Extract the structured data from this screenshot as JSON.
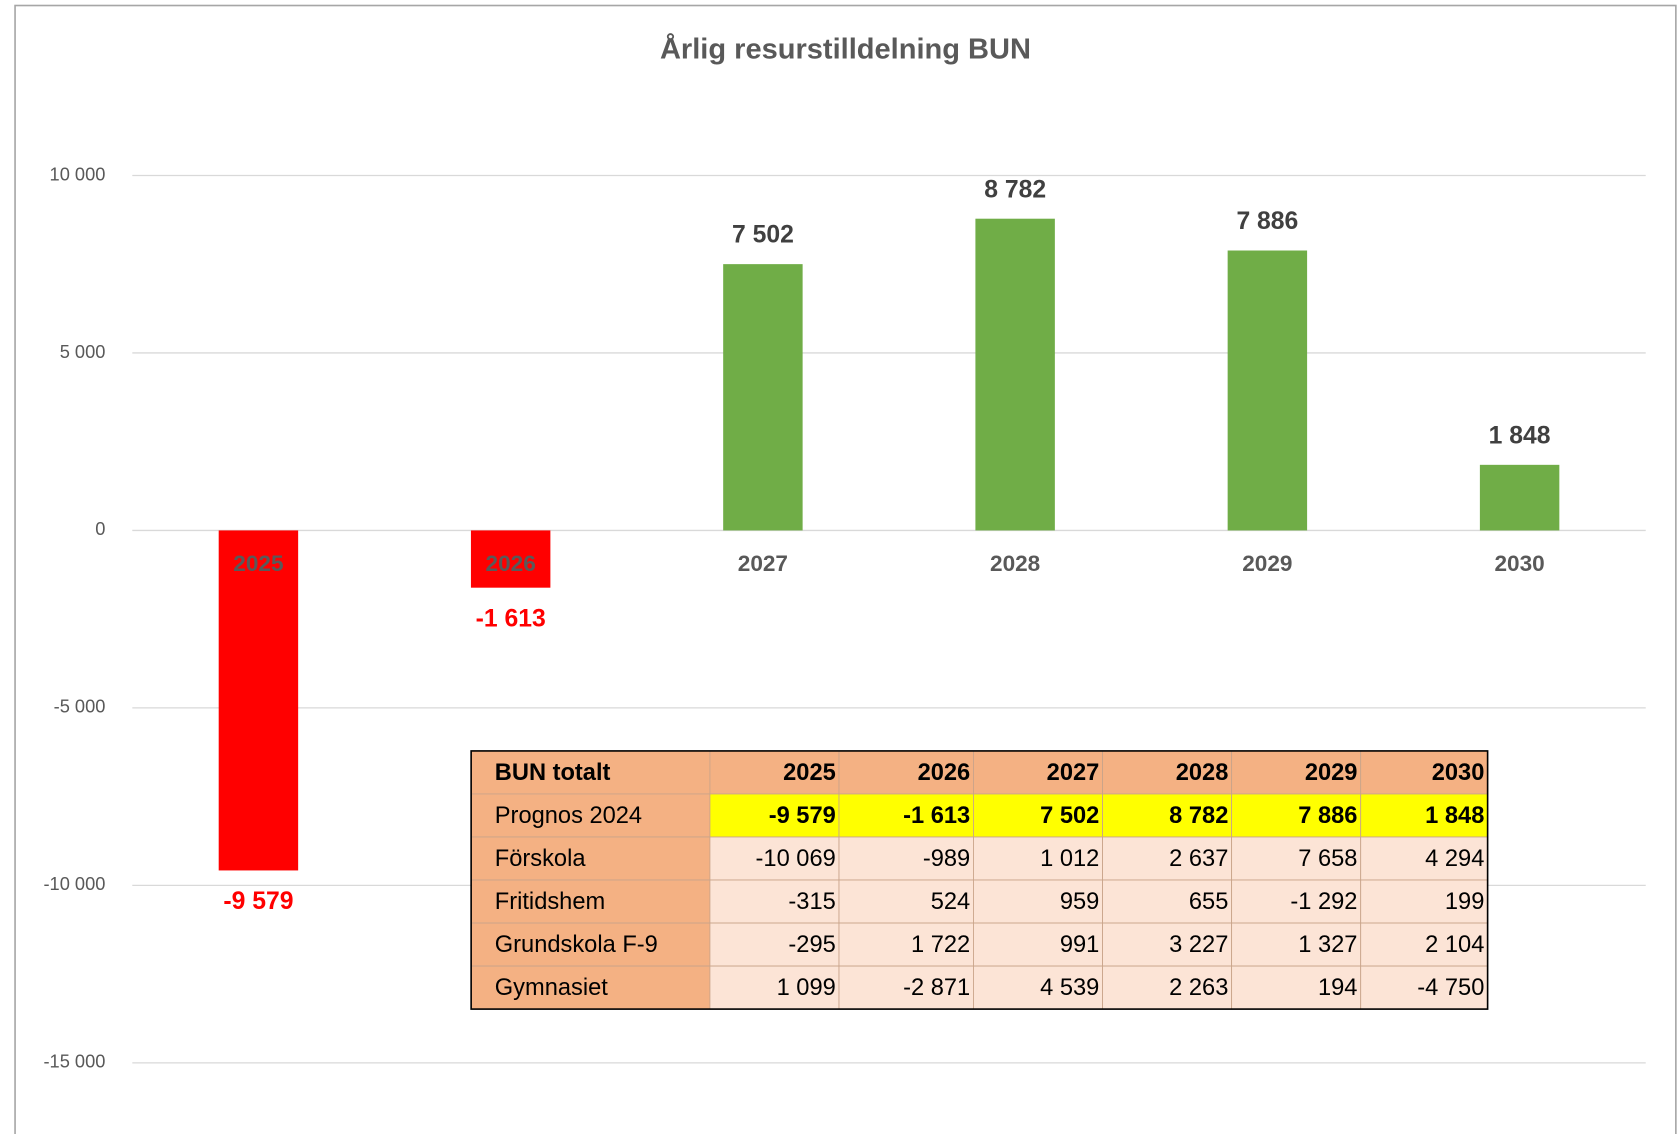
{
  "chart_data": {
    "type": "bar",
    "title": "Årlig resurstilldelning BUN",
    "categories": [
      "2025",
      "2026",
      "2027",
      "2028",
      "2029",
      "2030"
    ],
    "values": [
      -9579,
      -1613,
      7502,
      8782,
      7886,
      1848
    ],
    "value_labels": [
      "-9 579",
      "-1 613",
      "7 502",
      "8 782",
      "7 886",
      "1 848"
    ],
    "colors": [
      "#ff0000",
      "#ff0000",
      "#70ad47",
      "#70ad47",
      "#70ad47",
      "#70ad47"
    ],
    "ylim": [
      -15000,
      10000
    ],
    "yticks": [
      {
        "value": -15000,
        "label": "-15 000"
      },
      {
        "value": -10000,
        "label": "-10 000"
      },
      {
        "value": -5000,
        "label": "-5 000"
      },
      0,
      {
        "value": 5000,
        "label": "5 000"
      },
      {
        "value": 10000,
        "label": "10 000"
      }
    ],
    "grid": true
  },
  "table": {
    "header": [
      "BUN totalt",
      "2025",
      "2026",
      "2027",
      "2028",
      "2029",
      "2030"
    ],
    "rows": [
      [
        "Prognos 2024",
        "-9 579",
        "-1 613",
        "7 502",
        "8 782",
        "7 886",
        "1 848"
      ],
      [
        "Förskola",
        "-10 069",
        "-989",
        "1 012",
        "2 637",
        "7 658",
        "4 294"
      ],
      [
        "Fritidshem",
        "-315",
        "524",
        "959",
        "655",
        "-1 292",
        "199"
      ],
      [
        "Grundskola F-9",
        "-295",
        "1 722",
        "991",
        "3 227",
        "1 327",
        "2 104"
      ],
      [
        "Gymnasiet",
        "1 099",
        "-2 871",
        "4 539",
        "2 263",
        "194",
        "-4 750"
      ]
    ]
  }
}
